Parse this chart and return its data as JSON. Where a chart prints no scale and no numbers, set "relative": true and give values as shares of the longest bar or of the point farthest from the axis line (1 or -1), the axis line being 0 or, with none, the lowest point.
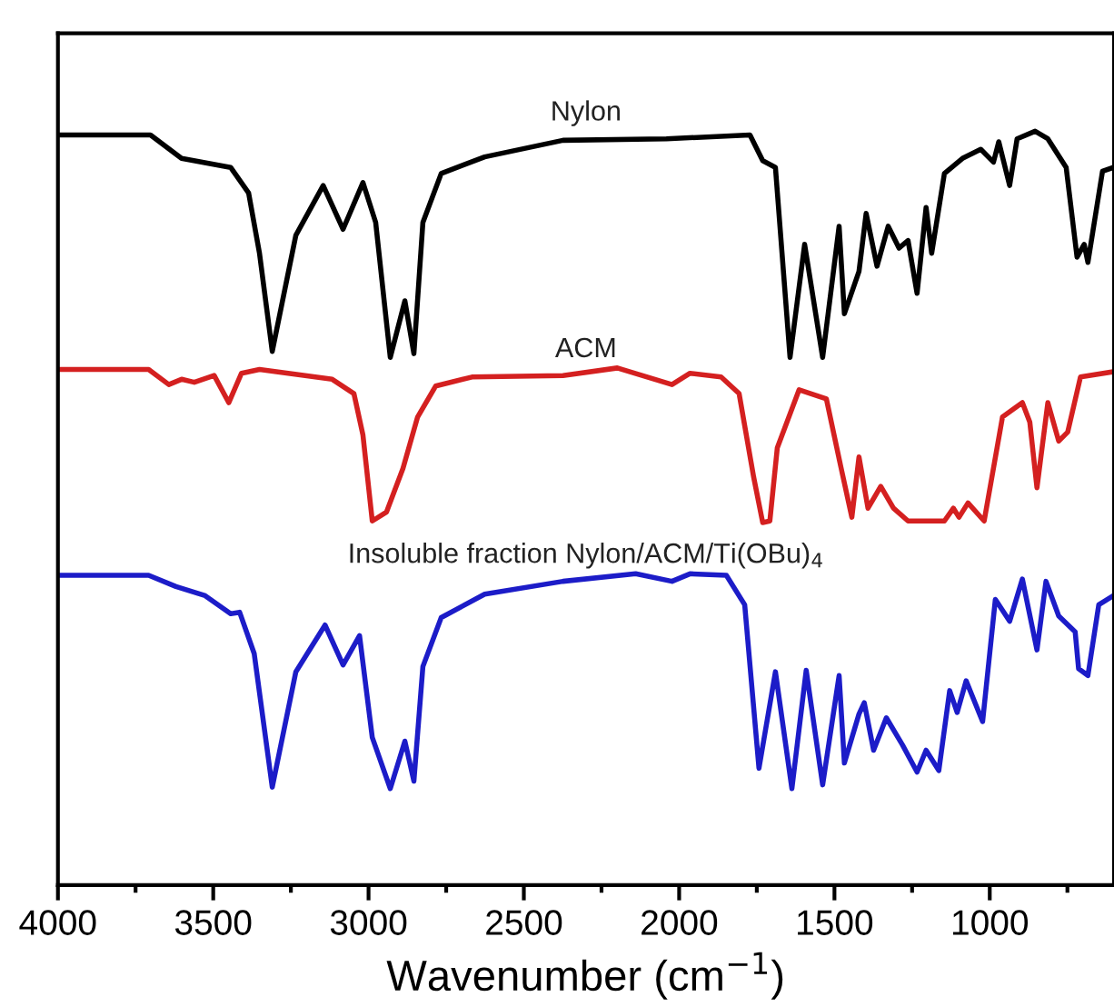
{
  "chart_data": {
    "type": "line",
    "relative": true,
    "xlabel": "Wavenumber (cm$^{−1}$)",
    "xlim": [
      4000,
      600
    ],
    "xticks": [
      4000,
      {
        "value": 3750,
        "label": null
      },
      3500,
      {
        "value": 3250,
        "label": null
      },
      3000,
      {
        "value": 2750,
        "label": null
      },
      2500,
      {
        "value": 2250,
        "label": null
      },
      2000,
      {
        "value": 1750,
        "label": null
      },
      1500,
      {
        "value": 1250,
        "label": null
      },
      1000,
      {
        "value": 750,
        "label": null
      }
    ],
    "tick_labels": "x",
    "grid": false,
    "legend": false,
    "marker": "none",
    "line_style": "solid",
    "series": [
      {
        "name": "Nylon",
        "color": "#000000",
        "x": [
          4000,
          3702,
          3602,
          3444,
          3386,
          3351,
          3310,
          3234,
          3146,
          3082,
          3018,
          2977,
          2930,
          2883,
          2854,
          2825,
          2766,
          2626,
          2374,
          2041,
          1772,
          1731,
          1690,
          1643,
          1596,
          1538,
          1485,
          1468,
          1421,
          1398,
          1363,
          1327,
          1292,
          1263,
          1234,
          1205,
          1187,
          1146,
          1088,
          1029,
          988,
          971,
          936,
          912,
          854,
          813,
          754,
          719,
          696,
          684,
          637,
          602
        ],
        "values": [
          0.995,
          0.995,
          0.964,
          0.952,
          0.918,
          0.838,
          0.708,
          0.862,
          0.928,
          0.87,
          0.932,
          0.879,
          0.7,
          0.775,
          0.705,
          0.879,
          0.944,
          0.966,
          0.988,
          0.99,
          0.995,
          0.961,
          0.952,
          0.7,
          0.85,
          0.7,
          0.874,
          0.758,
          0.814,
          0.891,
          0.821,
          0.874,
          0.845,
          0.855,
          0.785,
          0.899,
          0.838,
          0.944,
          0.964,
          0.976,
          0.959,
          0.986,
          0.928,
          0.99,
          1.0,
          0.99,
          0.952,
          0.833,
          0.85,
          0.826,
          0.947,
          0.952
        ]
      },
      {
        "name": "ACM",
        "color": "#d42020",
        "x": [
          4000,
          3708,
          3643,
          3602,
          3561,
          3497,
          3450,
          3409,
          3351,
          3117,
          3047,
          3018,
          2988,
          2942,
          2889,
          2842,
          2784,
          2667,
          2374,
          2199,
          2023,
          1965,
          1865,
          1807,
          1760,
          1731,
          1708,
          1684,
          1614,
          1526,
          1480,
          1444,
          1421,
          1392,
          1351,
          1310,
          1263,
          1146,
          1117,
          1099,
          1070,
          1018,
          959,
          895,
          871,
          848,
          813,
          778,
          749,
          708,
          602
        ],
        "values": [
          0.684,
          0.684,
          0.664,
          0.671,
          0.667,
          0.676,
          0.64,
          0.679,
          0.684,
          0.671,
          0.652,
          0.597,
          0.483,
          0.495,
          0.553,
          0.621,
          0.662,
          0.674,
          0.676,
          0.686,
          0.664,
          0.679,
          0.674,
          0.652,
          0.541,
          0.481,
          0.483,
          0.58,
          0.657,
          0.645,
          0.556,
          0.488,
          0.568,
          0.5,
          0.529,
          0.5,
          0.483,
          0.483,
          0.5,
          0.488,
          0.507,
          0.483,
          0.621,
          0.64,
          0.614,
          0.527,
          0.64,
          0.589,
          0.601,
          0.674,
          0.681
        ]
      },
      {
        "name": "Insoluble fraction Nylon/ACM/Ti(OBu)$_{4}$",
        "color": "#1c1cc8",
        "x": [
          4000,
          3708,
          3620,
          3526,
          3444,
          3415,
          3368,
          3310,
          3234,
          3140,
          3082,
          3029,
          2988,
          2930,
          2883,
          2854,
          2825,
          2766,
          2626,
          2374,
          2140,
          2023,
          1965,
          1848,
          1789,
          1743,
          1690,
          1637,
          1591,
          1538,
          1485,
          1468,
          1421,
          1404,
          1374,
          1333,
          1281,
          1234,
          1205,
          1164,
          1129,
          1105,
          1076,
          1023,
          982,
          936,
          895,
          848,
          819,
          778,
          725,
          714,
          684,
          649,
          602
        ],
        "values": [
          0.411,
          0.411,
          0.396,
          0.384,
          0.36,
          0.362,
          0.307,
          0.13,
          0.283,
          0.345,
          0.292,
          0.331,
          0.196,
          0.128,
          0.191,
          0.138,
          0.29,
          0.355,
          0.386,
          0.403,
          0.413,
          0.403,
          0.413,
          0.411,
          0.372,
          0.155,
          0.283,
          0.128,
          0.285,
          0.133,
          0.278,
          0.162,
          0.227,
          0.242,
          0.179,
          0.222,
          0.186,
          0.15,
          0.179,
          0.152,
          0.258,
          0.229,
          0.271,
          0.217,
          0.379,
          0.35,
          0.406,
          0.312,
          0.403,
          0.357,
          0.336,
          0.287,
          0.278,
          0.372,
          0.384
        ]
      }
    ]
  }
}
